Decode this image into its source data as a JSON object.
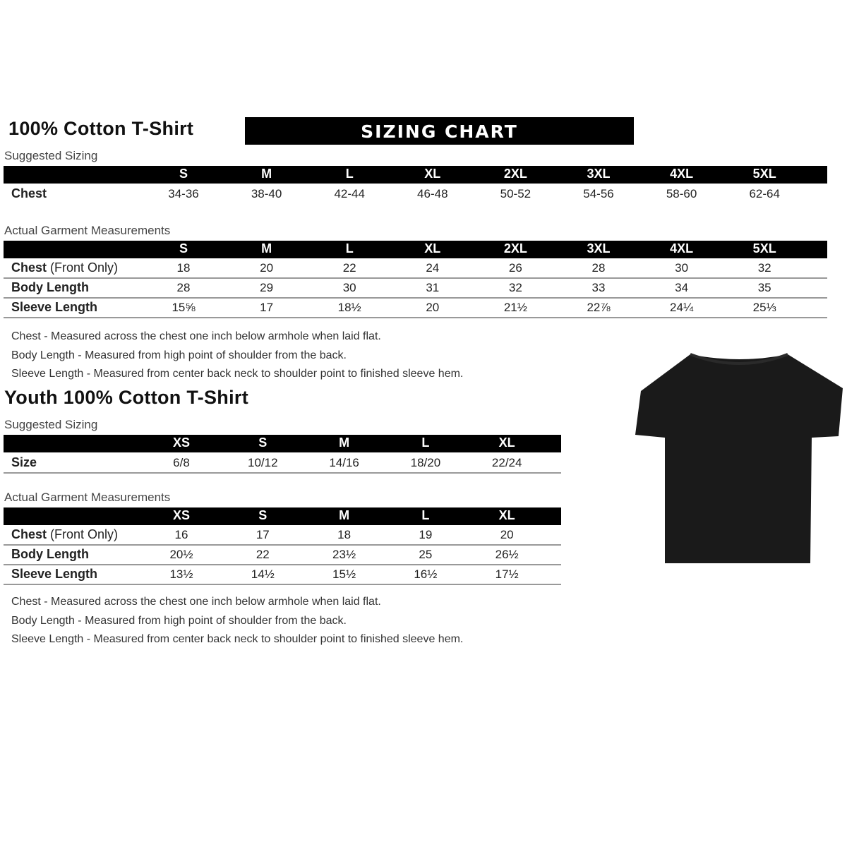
{
  "adult": {
    "title": "100% Cotton T-Shirt",
    "banner": "SIZING CHART",
    "suggested_label": "Suggested Sizing",
    "sizes": [
      "S",
      "M",
      "L",
      "XL",
      "2XL",
      "3XL",
      "4XL",
      "5XL"
    ],
    "suggested_rows": [
      {
        "label": "Chest",
        "values": [
          "34-36",
          "38-40",
          "42-44",
          "46-48",
          "50-52",
          "54-56",
          "58-60",
          "62-64"
        ]
      }
    ],
    "actual_label": "Actual Garment Measurements",
    "actual_rows": [
      {
        "label": "Chest",
        "label_extra": " (Front Only)",
        "values": [
          "18",
          "20",
          "22",
          "24",
          "26",
          "28",
          "30",
          "32"
        ]
      },
      {
        "label": "Body Length",
        "values": [
          "28",
          "29",
          "30",
          "31",
          "32",
          "33",
          "34",
          "35"
        ]
      },
      {
        "label": "Sleeve Length",
        "values": [
          "15⅝",
          "17",
          "18½",
          "20",
          "21½",
          "22⅞",
          "24¼",
          "25⅓"
        ]
      }
    ],
    "notes": [
      "Chest - Measured across the chest one inch below armhole when laid flat.",
      "Body Length - Measured from high point of shoulder from the back.",
      "Sleeve Length - Measured from center back neck to shoulder point to finished sleeve hem."
    ]
  },
  "youth": {
    "title": "Youth 100% Cotton T-Shirt",
    "suggested_label": "Suggested Sizing",
    "sizes": [
      "XS",
      "S",
      "M",
      "L",
      "XL"
    ],
    "suggested_rows": [
      {
        "label": "Size",
        "values": [
          "6/8",
          "10/12",
          "14/16",
          "18/20",
          "22/24"
        ]
      }
    ],
    "actual_label": "Actual Garment Measurements",
    "actual_rows": [
      {
        "label": "Chest",
        "label_extra": " (Front Only)",
        "values": [
          "16",
          "17",
          "18",
          "19",
          "20"
        ]
      },
      {
        "label": "Body Length",
        "values": [
          "20½",
          "22",
          "23½",
          "25",
          "26½"
        ]
      },
      {
        "label": "Sleeve Length",
        "values": [
          "13½",
          "14½",
          "15½",
          "16½",
          "17½"
        ]
      }
    ],
    "notes": [
      "Chest - Measured across the chest one inch below armhole when laid flat.",
      "Body Length - Measured from high point of shoulder from the back.",
      "Sleeve Length - Measured from center back neck to shoulder point to finished sleeve hem."
    ]
  },
  "colors": {
    "header": "#000000",
    "shirt": "#1a1a1a"
  }
}
